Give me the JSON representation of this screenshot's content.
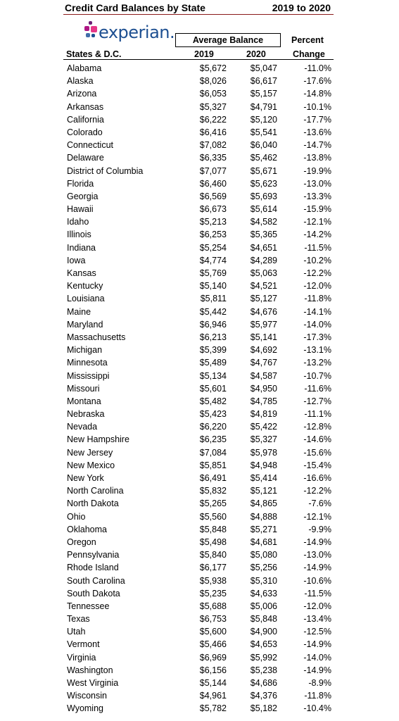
{
  "title": "Credit Card Balances by State",
  "period": "2019 to 2020",
  "logo": {
    "text": "experian.",
    "dot_colors": [
      "#6d2077",
      "#af1685",
      "#e63888",
      "#426da9",
      "#1d4f91"
    ]
  },
  "header": {
    "group_label": "Average Balance",
    "percent_label": "Percent",
    "states_label": "States & D.C.",
    "col_2019": "2019",
    "col_2020": "2020",
    "change_label": "Change"
  },
  "rows": [
    {
      "state": "Alabama",
      "y2019": "$5,672",
      "y2020": "$5,047",
      "change": "-11.0%"
    },
    {
      "state": "Alaska",
      "y2019": "$8,026",
      "y2020": "$6,617",
      "change": "-17.6%"
    },
    {
      "state": "Arizona",
      "y2019": "$6,053",
      "y2020": "$5,157",
      "change": "-14.8%"
    },
    {
      "state": "Arkansas",
      "y2019": "$5,327",
      "y2020": "$4,791",
      "change": "-10.1%"
    },
    {
      "state": "California",
      "y2019": "$6,222",
      "y2020": "$5,120",
      "change": "-17.7%"
    },
    {
      "state": "Colorado",
      "y2019": "$6,416",
      "y2020": "$5,541",
      "change": "-13.6%"
    },
    {
      "state": "Connecticut",
      "y2019": "$7,082",
      "y2020": "$6,040",
      "change": "-14.7%"
    },
    {
      "state": "Delaware",
      "y2019": "$6,335",
      "y2020": "$5,462",
      "change": "-13.8%"
    },
    {
      "state": "District of Columbia",
      "y2019": "$7,077",
      "y2020": "$5,671",
      "change": "-19.9%"
    },
    {
      "state": "Florida",
      "y2019": "$6,460",
      "y2020": "$5,623",
      "change": "-13.0%"
    },
    {
      "state": "Georgia",
      "y2019": "$6,569",
      "y2020": "$5,693",
      "change": "-13.3%"
    },
    {
      "state": "Hawaii",
      "y2019": "$6,673",
      "y2020": "$5,614",
      "change": "-15.9%"
    },
    {
      "state": "Idaho",
      "y2019": "$5,213",
      "y2020": "$4,582",
      "change": "-12.1%"
    },
    {
      "state": "Illinois",
      "y2019": "$6,253",
      "y2020": "$5,365",
      "change": "-14.2%"
    },
    {
      "state": "Indiana",
      "y2019": "$5,254",
      "y2020": "$4,651",
      "change": "-11.5%"
    },
    {
      "state": "Iowa",
      "y2019": "$4,774",
      "y2020": "$4,289",
      "change": "-10.2%"
    },
    {
      "state": "Kansas",
      "y2019": "$5,769",
      "y2020": "$5,063",
      "change": "-12.2%"
    },
    {
      "state": "Kentucky",
      "y2019": "$5,140",
      "y2020": "$4,521",
      "change": "-12.0%"
    },
    {
      "state": "Louisiana",
      "y2019": "$5,811",
      "y2020": "$5,127",
      "change": "-11.8%"
    },
    {
      "state": "Maine",
      "y2019": "$5,442",
      "y2020": "$4,676",
      "change": "-14.1%"
    },
    {
      "state": "Maryland",
      "y2019": "$6,946",
      "y2020": "$5,977",
      "change": "-14.0%"
    },
    {
      "state": "Massachusetts",
      "y2019": "$6,213",
      "y2020": "$5,141",
      "change": "-17.3%"
    },
    {
      "state": "Michigan",
      "y2019": "$5,399",
      "y2020": "$4,692",
      "change": "-13.1%"
    },
    {
      "state": "Minnesota",
      "y2019": "$5,489",
      "y2020": "$4,767",
      "change": "-13.2%"
    },
    {
      "state": "Mississippi",
      "y2019": "$5,134",
      "y2020": "$4,587",
      "change": "-10.7%"
    },
    {
      "state": "Missouri",
      "y2019": "$5,601",
      "y2020": "$4,950",
      "change": "-11.6%"
    },
    {
      "state": "Montana",
      "y2019": "$5,482",
      "y2020": "$4,785",
      "change": "-12.7%"
    },
    {
      "state": "Nebraska",
      "y2019": "$5,423",
      "y2020": "$4,819",
      "change": "-11.1%"
    },
    {
      "state": "Nevada",
      "y2019": "$6,220",
      "y2020": "$5,422",
      "change": "-12.8%"
    },
    {
      "state": "New Hampshire",
      "y2019": "$6,235",
      "y2020": "$5,327",
      "change": "-14.6%"
    },
    {
      "state": "New Jersey",
      "y2019": "$7,084",
      "y2020": "$5,978",
      "change": "-15.6%"
    },
    {
      "state": "New Mexico",
      "y2019": "$5,851",
      "y2020": "$4,948",
      "change": "-15.4%"
    },
    {
      "state": "New York",
      "y2019": "$6,491",
      "y2020": "$5,414",
      "change": "-16.6%"
    },
    {
      "state": "North Carolina",
      "y2019": "$5,832",
      "y2020": "$5,121",
      "change": "-12.2%"
    },
    {
      "state": "North Dakota",
      "y2019": "$5,265",
      "y2020": "$4,865",
      "change": "-7.6%"
    },
    {
      "state": "Ohio",
      "y2019": "$5,560",
      "y2020": "$4,888",
      "change": "-12.1%"
    },
    {
      "state": "Oklahoma",
      "y2019": "$5,848",
      "y2020": "$5,271",
      "change": "-9.9%"
    },
    {
      "state": "Oregon",
      "y2019": "$5,498",
      "y2020": "$4,681",
      "change": "-14.9%"
    },
    {
      "state": "Pennsylvania",
      "y2019": "$5,840",
      "y2020": "$5,080",
      "change": "-13.0%"
    },
    {
      "state": "Rhode Island",
      "y2019": "$6,177",
      "y2020": "$5,256",
      "change": "-14.9%"
    },
    {
      "state": "South Carolina",
      "y2019": "$5,938",
      "y2020": "$5,310",
      "change": "-10.6%"
    },
    {
      "state": "South Dakota",
      "y2019": "$5,235",
      "y2020": "$4,633",
      "change": "-11.5%"
    },
    {
      "state": "Tennessee",
      "y2019": "$5,688",
      "y2020": "$5,006",
      "change": "-12.0%"
    },
    {
      "state": "Texas",
      "y2019": "$6,753",
      "y2020": "$5,848",
      "change": "-13.4%"
    },
    {
      "state": "Utah",
      "y2019": "$5,600",
      "y2020": "$4,900",
      "change": "-12.5%"
    },
    {
      "state": "Vermont",
      "y2019": "$5,466",
      "y2020": "$4,653",
      "change": "-14.9%"
    },
    {
      "state": "Virginia",
      "y2019": "$6,969",
      "y2020": "$5,992",
      "change": "-14.0%"
    },
    {
      "state": "Washington",
      "y2019": "$6,156",
      "y2020": "$5,238",
      "change": "-14.9%"
    },
    {
      "state": "West Virginia",
      "y2019": "$5,144",
      "y2020": "$4,686",
      "change": "-8.9%"
    },
    {
      "state": "Wisconsin",
      "y2019": "$4,961",
      "y2020": "$4,376",
      "change": "-11.8%"
    },
    {
      "state": "Wyoming",
      "y2019": "$5,782",
      "y2020": "$5,182",
      "change": "-10.4%"
    }
  ]
}
